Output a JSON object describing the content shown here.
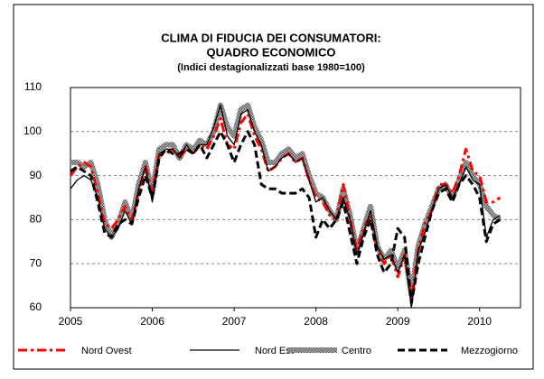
{
  "chart_data": {
    "type": "line",
    "title": [
      "CLIMA DI FIDUCIA DEI CONSUMATORI:",
      "QUADRO ECONOMICO"
    ],
    "subtitle": "(Indici destagionalizzati  base 1980=100)",
    "x": [
      2005,
      2005.083,
      2005.167,
      2005.25,
      2005.333,
      2005.417,
      2005.5,
      2005.583,
      2005.667,
      2005.75,
      2005.833,
      2005.917,
      2006,
      2006.083,
      2006.167,
      2006.25,
      2006.333,
      2006.417,
      2006.5,
      2006.583,
      2006.667,
      2006.75,
      2006.833,
      2006.917,
      2007,
      2007.083,
      2007.167,
      2007.25,
      2007.333,
      2007.417,
      2007.5,
      2007.583,
      2007.667,
      2007.75,
      2007.833,
      2007.917,
      2008,
      2008.083,
      2008.167,
      2008.25,
      2008.333,
      2008.417,
      2008.5,
      2008.583,
      2008.667,
      2008.75,
      2008.833,
      2008.917,
      2009,
      2009.083,
      2009.167,
      2009.25,
      2009.333,
      2009.417,
      2009.5,
      2009.583,
      2009.667,
      2009.75,
      2009.833,
      2009.917,
      2010,
      2010.083,
      2010.167,
      2010.25
    ],
    "series": [
      {
        "name": "Nord Ovest",
        "color": "#ff0000",
        "style": "dash-dot",
        "values": [
          90,
          92,
          93,
          92,
          86,
          79,
          78,
          80,
          83,
          80,
          86,
          92,
          86,
          95,
          95,
          96,
          94,
          96,
          95,
          97,
          96,
          99,
          103,
          97,
          96,
          102,
          104,
          99,
          96,
          91,
          92,
          94,
          95,
          93,
          94,
          89,
          85,
          84,
          81,
          80,
          88,
          80,
          73,
          78,
          81,
          73,
          70,
          72,
          67,
          72,
          62,
          73,
          79,
          82,
          88,
          88,
          86,
          90,
          96,
          91,
          90,
          84,
          84,
          85
        ]
      },
      {
        "name": "Nord Est",
        "color": "#000000",
        "style": "solid",
        "values": [
          87,
          89,
          90,
          89,
          85,
          78,
          76,
          78,
          82,
          79,
          87,
          92,
          84,
          95,
          96,
          96,
          94,
          97,
          95,
          97,
          97,
          101,
          106,
          99,
          97,
          104,
          105,
          100,
          97,
          91,
          92,
          94,
          95,
          93,
          94,
          89,
          84,
          85,
          82,
          80,
          85,
          80,
          72,
          77,
          82,
          74,
          71,
          72,
          68,
          72,
          60,
          73,
          77,
          82,
          87,
          88,
          85,
          88,
          92,
          89,
          88,
          76,
          80,
          81
        ]
      },
      {
        "name": "Centro",
        "color": "#8c8c8c",
        "style": "thick",
        "values": [
          93,
          93,
          92,
          93,
          88,
          80,
          76,
          79,
          84,
          80,
          88,
          93,
          86,
          96,
          97,
          97,
          94,
          97,
          96,
          98,
          97,
          100,
          106,
          101,
          99,
          105,
          106,
          101,
          98,
          93,
          93,
          95,
          96,
          94,
          95,
          90,
          86,
          85,
          82,
          80,
          87,
          81,
          73,
          78,
          83,
          74,
          71,
          73,
          69,
          73,
          63,
          74,
          79,
          83,
          87,
          88,
          85,
          89,
          93,
          90,
          88,
          83,
          81,
          80
        ]
      },
      {
        "name": "Mezzogiorno",
        "color": "#000000",
        "style": "dashed",
        "values": [
          91,
          92,
          91,
          90,
          84,
          77,
          76,
          79,
          80,
          79,
          85,
          90,
          85,
          94,
          96,
          95,
          95,
          96,
          95,
          97,
          94,
          97,
          100,
          97,
          93,
          97,
          100,
          97,
          88,
          87,
          87,
          86,
          86,
          86,
          87,
          85,
          76,
          80,
          78,
          80,
          84,
          77,
          70,
          76,
          80,
          72,
          68,
          70,
          78,
          76,
          61,
          70,
          76,
          82,
          86,
          87,
          84,
          88,
          90,
          88,
          85,
          75,
          79,
          80
        ]
      }
    ],
    "xlim": [
      2005,
      2010.5
    ],
    "xticks": [
      2005,
      2006,
      2007,
      2008,
      2009,
      2010
    ],
    "ylim": [
      60,
      110
    ],
    "yticks": [
      60,
      70,
      80,
      90,
      100,
      110
    ],
    "grid": true,
    "legend": "bottom"
  }
}
